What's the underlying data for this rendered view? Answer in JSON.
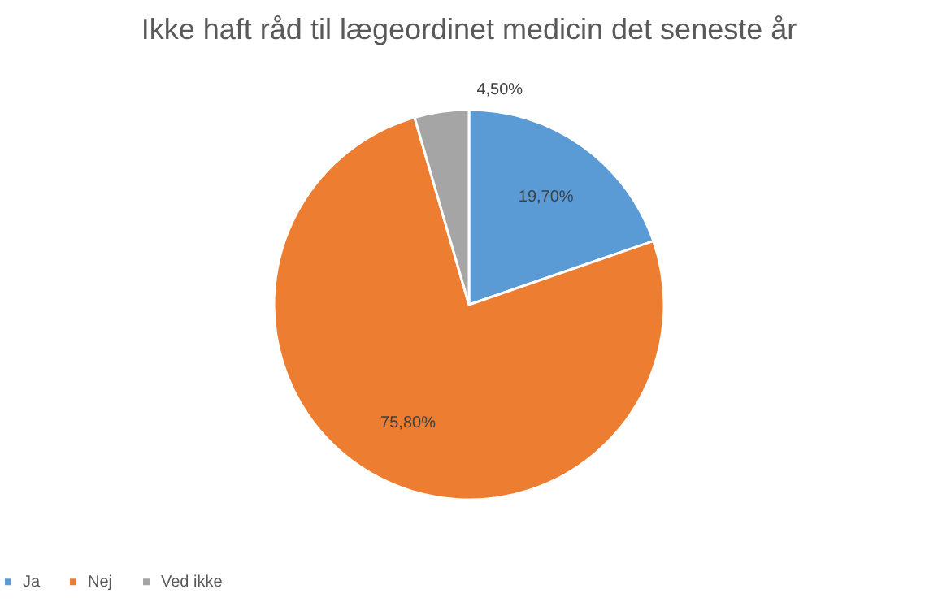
{
  "chart_data": {
    "type": "pie",
    "title": "Ikke haft råd til lægeordinet medicin det seneste år",
    "categories": [
      "Ja",
      "Nej",
      "Ved ikke"
    ],
    "values": [
      19.7,
      75.8,
      4.5
    ],
    "colors": [
      "#5b9bd5",
      "#ed7d31",
      "#a5a5a5"
    ],
    "value_labels": [
      "19,70%",
      "75,80%",
      "4,50%"
    ],
    "legend": "bottom"
  }
}
